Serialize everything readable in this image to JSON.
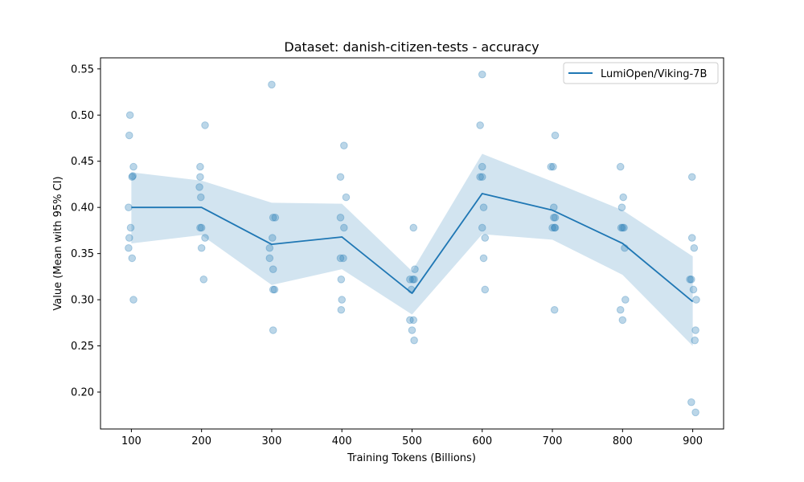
{
  "chart_data": {
    "type": "line",
    "title": "Dataset: danish-citizen-tests - accuracy",
    "xlabel": "Training Tokens (Billions)",
    "ylabel": "Value (Mean with 95% CI)",
    "xlim": [
      56,
      944
    ],
    "ylim": [
      0.16,
      0.562
    ],
    "xticks": [
      100,
      200,
      300,
      400,
      500,
      600,
      700,
      800,
      900
    ],
    "xtick_labels": [
      "100",
      "200",
      "300",
      "400",
      "500",
      "600",
      "700",
      "800",
      "900"
    ],
    "yticks": [
      0.2,
      0.25,
      0.3,
      0.35,
      0.4,
      0.45,
      0.5,
      0.55
    ],
    "ytick_labels": [
      "0.20",
      "0.25",
      "0.30",
      "0.35",
      "0.40",
      "0.45",
      "0.50",
      "0.55"
    ],
    "grid": false,
    "legend_position": "top-right",
    "colors": {
      "series": "#1f77b4",
      "band": "#1f77b4"
    },
    "series": [
      {
        "name": "LumiOpen/Viking-7B",
        "x": [
          100,
          200,
          300,
          400,
          500,
          600,
          700,
          800,
          900
        ],
        "mean": [
          0.4,
          0.4,
          0.36,
          0.368,
          0.307,
          0.415,
          0.397,
          0.361,
          0.298
        ],
        "ci_lower": [
          0.361,
          0.37,
          0.316,
          0.333,
          0.284,
          0.371,
          0.365,
          0.327,
          0.25
        ],
        "ci_upper": [
          0.438,
          0.429,
          0.405,
          0.404,
          0.331,
          0.458,
          0.428,
          0.397,
          0.347
        ]
      }
    ],
    "scatter_points": [
      {
        "x": 98,
        "y": 0.5
      },
      {
        "x": 97,
        "y": 0.478
      },
      {
        "x": 103,
        "y": 0.444
      },
      {
        "x": 101,
        "y": 0.433
      },
      {
        "x": 102,
        "y": 0.434
      },
      {
        "x": 96,
        "y": 0.4
      },
      {
        "x": 99,
        "y": 0.378
      },
      {
        "x": 97,
        "y": 0.367
      },
      {
        "x": 96,
        "y": 0.356
      },
      {
        "x": 101,
        "y": 0.345
      },
      {
        "x": 103,
        "y": 0.3
      },
      {
        "x": 205,
        "y": 0.489
      },
      {
        "x": 198,
        "y": 0.444
      },
      {
        "x": 198,
        "y": 0.433
      },
      {
        "x": 197,
        "y": 0.422
      },
      {
        "x": 199,
        "y": 0.411
      },
      {
        "x": 198,
        "y": 0.378
      },
      {
        "x": 200,
        "y": 0.378
      },
      {
        "x": 205,
        "y": 0.367
      },
      {
        "x": 200,
        "y": 0.356
      },
      {
        "x": 203,
        "y": 0.322
      },
      {
        "x": 300,
        "y": 0.533
      },
      {
        "x": 302,
        "y": 0.389
      },
      {
        "x": 305,
        "y": 0.389
      },
      {
        "x": 301,
        "y": 0.367
      },
      {
        "x": 297,
        "y": 0.356
      },
      {
        "x": 297,
        "y": 0.345
      },
      {
        "x": 302,
        "y": 0.333
      },
      {
        "x": 302,
        "y": 0.311
      },
      {
        "x": 304,
        "y": 0.311
      },
      {
        "x": 302,
        "y": 0.267
      },
      {
        "x": 403,
        "y": 0.467
      },
      {
        "x": 398,
        "y": 0.433
      },
      {
        "x": 406,
        "y": 0.411
      },
      {
        "x": 398,
        "y": 0.389
      },
      {
        "x": 403,
        "y": 0.378
      },
      {
        "x": 398,
        "y": 0.345
      },
      {
        "x": 402,
        "y": 0.345
      },
      {
        "x": 399,
        "y": 0.322
      },
      {
        "x": 400,
        "y": 0.3
      },
      {
        "x": 399,
        "y": 0.289
      },
      {
        "x": 502,
        "y": 0.378
      },
      {
        "x": 504,
        "y": 0.333
      },
      {
        "x": 497,
        "y": 0.322
      },
      {
        "x": 503,
        "y": 0.322
      },
      {
        "x": 501,
        "y": 0.322
      },
      {
        "x": 499,
        "y": 0.311
      },
      {
        "x": 497,
        "y": 0.278
      },
      {
        "x": 502,
        "y": 0.278
      },
      {
        "x": 500,
        "y": 0.267
      },
      {
        "x": 503,
        "y": 0.256
      },
      {
        "x": 600,
        "y": 0.544
      },
      {
        "x": 597,
        "y": 0.489
      },
      {
        "x": 600,
        "y": 0.444
      },
      {
        "x": 597,
        "y": 0.433
      },
      {
        "x": 600,
        "y": 0.433
      },
      {
        "x": 602,
        "y": 0.4
      },
      {
        "x": 600,
        "y": 0.378
      },
      {
        "x": 604,
        "y": 0.367
      },
      {
        "x": 602,
        "y": 0.345
      },
      {
        "x": 604,
        "y": 0.311
      },
      {
        "x": 704,
        "y": 0.478
      },
      {
        "x": 698,
        "y": 0.444
      },
      {
        "x": 701,
        "y": 0.444
      },
      {
        "x": 702,
        "y": 0.4
      },
      {
        "x": 704,
        "y": 0.389
      },
      {
        "x": 702,
        "y": 0.389
      },
      {
        "x": 700,
        "y": 0.378
      },
      {
        "x": 703,
        "y": 0.378
      },
      {
        "x": 704,
        "y": 0.378
      },
      {
        "x": 703,
        "y": 0.289
      },
      {
        "x": 797,
        "y": 0.444
      },
      {
        "x": 801,
        "y": 0.411
      },
      {
        "x": 799,
        "y": 0.4
      },
      {
        "x": 798,
        "y": 0.378
      },
      {
        "x": 800,
        "y": 0.378
      },
      {
        "x": 802,
        "y": 0.378
      },
      {
        "x": 803,
        "y": 0.356
      },
      {
        "x": 804,
        "y": 0.3
      },
      {
        "x": 797,
        "y": 0.289
      },
      {
        "x": 800,
        "y": 0.278
      },
      {
        "x": 899,
        "y": 0.433
      },
      {
        "x": 899,
        "y": 0.367
      },
      {
        "x": 902,
        "y": 0.356
      },
      {
        "x": 896,
        "y": 0.322
      },
      {
        "x": 898,
        "y": 0.322
      },
      {
        "x": 901,
        "y": 0.311
      },
      {
        "x": 905,
        "y": 0.3
      },
      {
        "x": 904,
        "y": 0.267
      },
      {
        "x": 903,
        "y": 0.256
      },
      {
        "x": 898,
        "y": 0.189
      },
      {
        "x": 904,
        "y": 0.178
      }
    ]
  }
}
